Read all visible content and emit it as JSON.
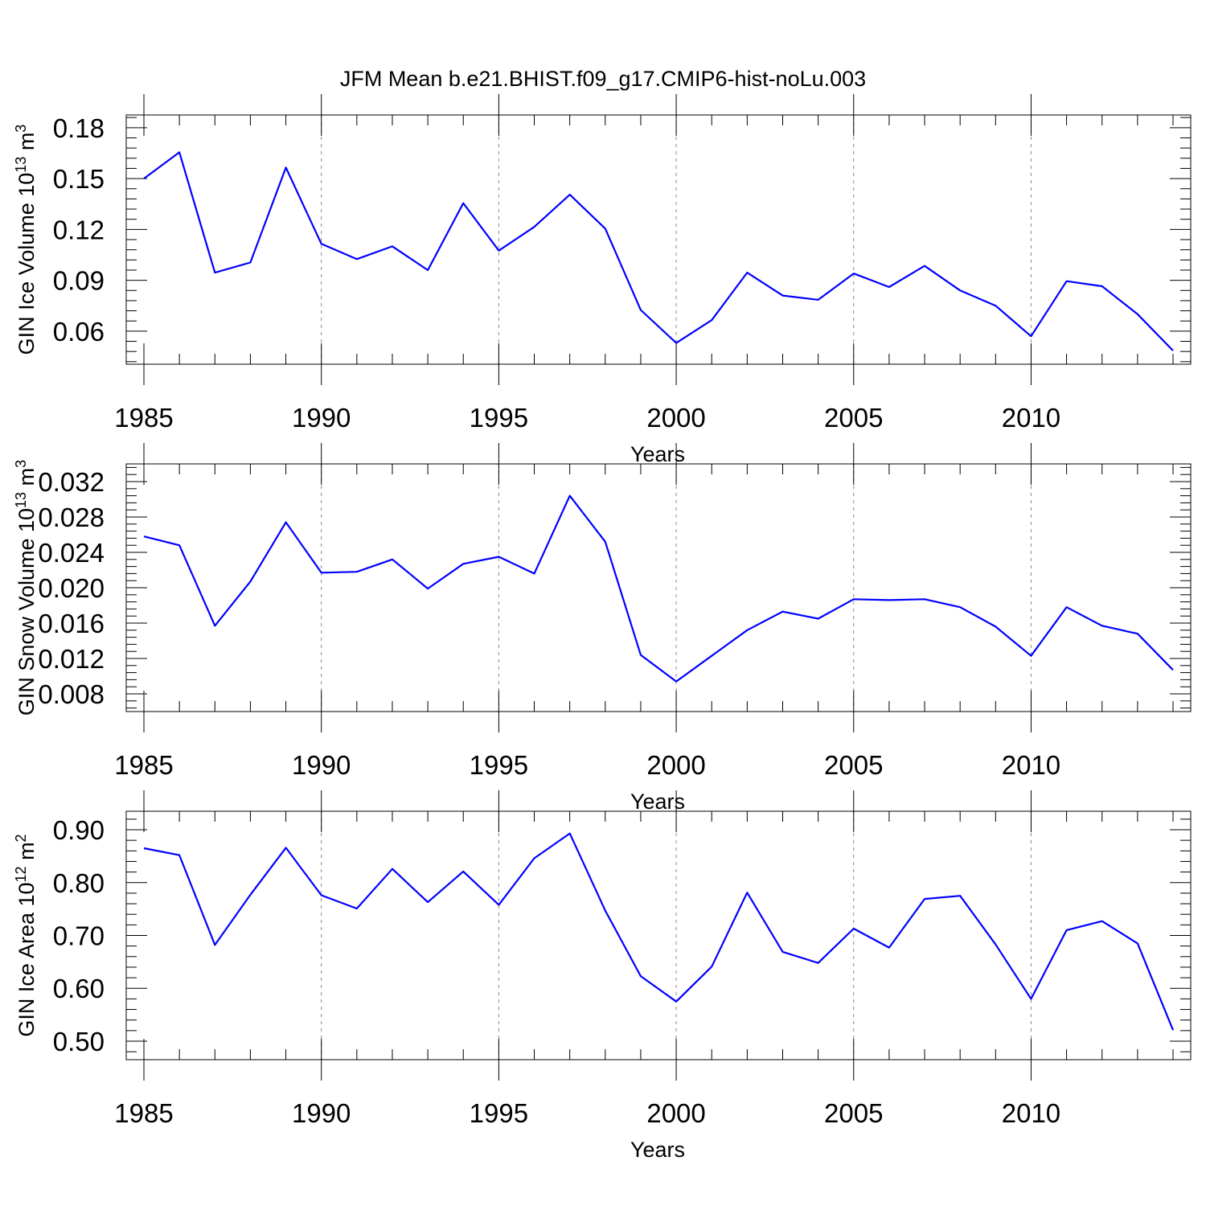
{
  "figure": {
    "title": "JFM Mean b.e21.BHIST.f09_g17.CMIP6-hist-noLu.003"
  },
  "chart_data": [
    {
      "type": "line",
      "title": "",
      "xlabel": "Years",
      "ylabel_main": "GIN Ice Volume 10",
      "ylabel_exp": "13",
      "ylabel_unit": " m",
      "ylabel_unit_exp": "3",
      "xlim": [
        1985,
        2014
      ],
      "ylim": [
        0.0405,
        0.1875
      ],
      "xticks": [
        1985,
        1990,
        1995,
        2000,
        2005,
        2010
      ],
      "xtick_labels": [
        "1985",
        "1990",
        "1995",
        "2000",
        "2005",
        "2010"
      ],
      "yticks": [
        0.06,
        0.09,
        0.12,
        0.15,
        0.18
      ],
      "ytick_labels": [
        "0.06",
        "0.09",
        "0.12",
        "0.15",
        "0.18"
      ],
      "series": [
        {
          "name": "GIN Ice Volume",
          "color": "#0000ff",
          "x": [
            1985,
            1986,
            1987,
            1988,
            1989,
            1990,
            1991,
            1992,
            1993,
            1994,
            1995,
            1996,
            1997,
            1998,
            1999,
            2000,
            2001,
            2002,
            2003,
            2004,
            2005,
            2006,
            2007,
            2008,
            2009,
            2010,
            2011,
            2012,
            2013,
            2014
          ],
          "values": [
            0.15,
            0.1655,
            0.0945,
            0.1005,
            0.1565,
            0.1115,
            0.1025,
            0.11,
            0.096,
            0.1355,
            0.1075,
            0.1215,
            0.1405,
            0.1205,
            0.0725,
            0.053,
            0.0665,
            0.0945,
            0.081,
            0.0785,
            0.094,
            0.086,
            0.0985,
            0.084,
            0.075,
            0.057,
            0.0895,
            0.0865,
            0.07,
            0.0485
          ]
        }
      ]
    },
    {
      "type": "line",
      "title": "",
      "xlabel": "Years",
      "ylabel_main": "GIN Snow Volume 10",
      "ylabel_exp": "13",
      "ylabel_unit": " m",
      "ylabel_unit_exp": "3",
      "xlim": [
        1985,
        2014
      ],
      "ylim": [
        0.006,
        0.034
      ],
      "xticks": [
        1985,
        1990,
        1995,
        2000,
        2005,
        2010
      ],
      "xtick_labels": [
        "1985",
        "1990",
        "1995",
        "2000",
        "2005",
        "2010"
      ],
      "yticks": [
        0.008,
        0.012,
        0.016,
        0.02,
        0.024,
        0.028,
        0.032
      ],
      "ytick_labels": [
        "0.008",
        "0.012",
        "0.016",
        "0.020",
        "0.024",
        "0.028",
        "0.032"
      ],
      "series": [
        {
          "name": "GIN Snow Volume",
          "color": "#0000ff",
          "x": [
            1985,
            1986,
            1987,
            1988,
            1989,
            1990,
            1991,
            1992,
            1993,
            1994,
            1995,
            1996,
            1997,
            1998,
            1999,
            2000,
            2001,
            2002,
            2003,
            2004,
            2005,
            2006,
            2007,
            2008,
            2009,
            2010,
            2011,
            2012,
            2013,
            2014
          ],
          "values": [
            0.0258,
            0.0248,
            0.0157,
            0.0207,
            0.0274,
            0.0217,
            0.0218,
            0.0232,
            0.0199,
            0.0227,
            0.0235,
            0.0216,
            0.0304,
            0.0252,
            0.0124,
            0.0094,
            0.0123,
            0.0152,
            0.0173,
            0.0165,
            0.0187,
            0.0186,
            0.0187,
            0.0178,
            0.0156,
            0.0123,
            0.0178,
            0.0157,
            0.0148,
            0.0107
          ]
        }
      ]
    },
    {
      "type": "line",
      "title": "",
      "xlabel": "Years",
      "ylabel_main": "GIN Ice Area 10",
      "ylabel_exp": "12",
      "ylabel_unit": " m",
      "ylabel_unit_exp": "2",
      "xlim": [
        1985,
        2014
      ],
      "ylim": [
        0.465,
        0.935
      ],
      "xticks": [
        1985,
        1990,
        1995,
        2000,
        2005,
        2010
      ],
      "xtick_labels": [
        "1985",
        "1990",
        "1995",
        "2000",
        "2005",
        "2010"
      ],
      "yticks": [
        0.5,
        0.6,
        0.7,
        0.8,
        0.9
      ],
      "ytick_labels": [
        "0.50",
        "0.60",
        "0.70",
        "0.80",
        "0.90"
      ],
      "series": [
        {
          "name": "GIN Ice Area",
          "color": "#0000ff",
          "x": [
            1985,
            1986,
            1987,
            1988,
            1989,
            1990,
            1991,
            1992,
            1993,
            1994,
            1995,
            1996,
            1997,
            1998,
            1999,
            2000,
            2001,
            2002,
            2003,
            2004,
            2005,
            2006,
            2007,
            2008,
            2009,
            2010,
            2011,
            2012,
            2013,
            2014
          ],
          "values": [
            0.865,
            0.852,
            0.682,
            0.777,
            0.866,
            0.776,
            0.751,
            0.826,
            0.763,
            0.821,
            0.758,
            0.846,
            0.893,
            0.747,
            0.623,
            0.575,
            0.641,
            0.781,
            0.669,
            0.648,
            0.713,
            0.677,
            0.769,
            0.775,
            0.683,
            0.58,
            0.71,
            0.727,
            0.685,
            0.521
          ]
        }
      ]
    }
  ]
}
